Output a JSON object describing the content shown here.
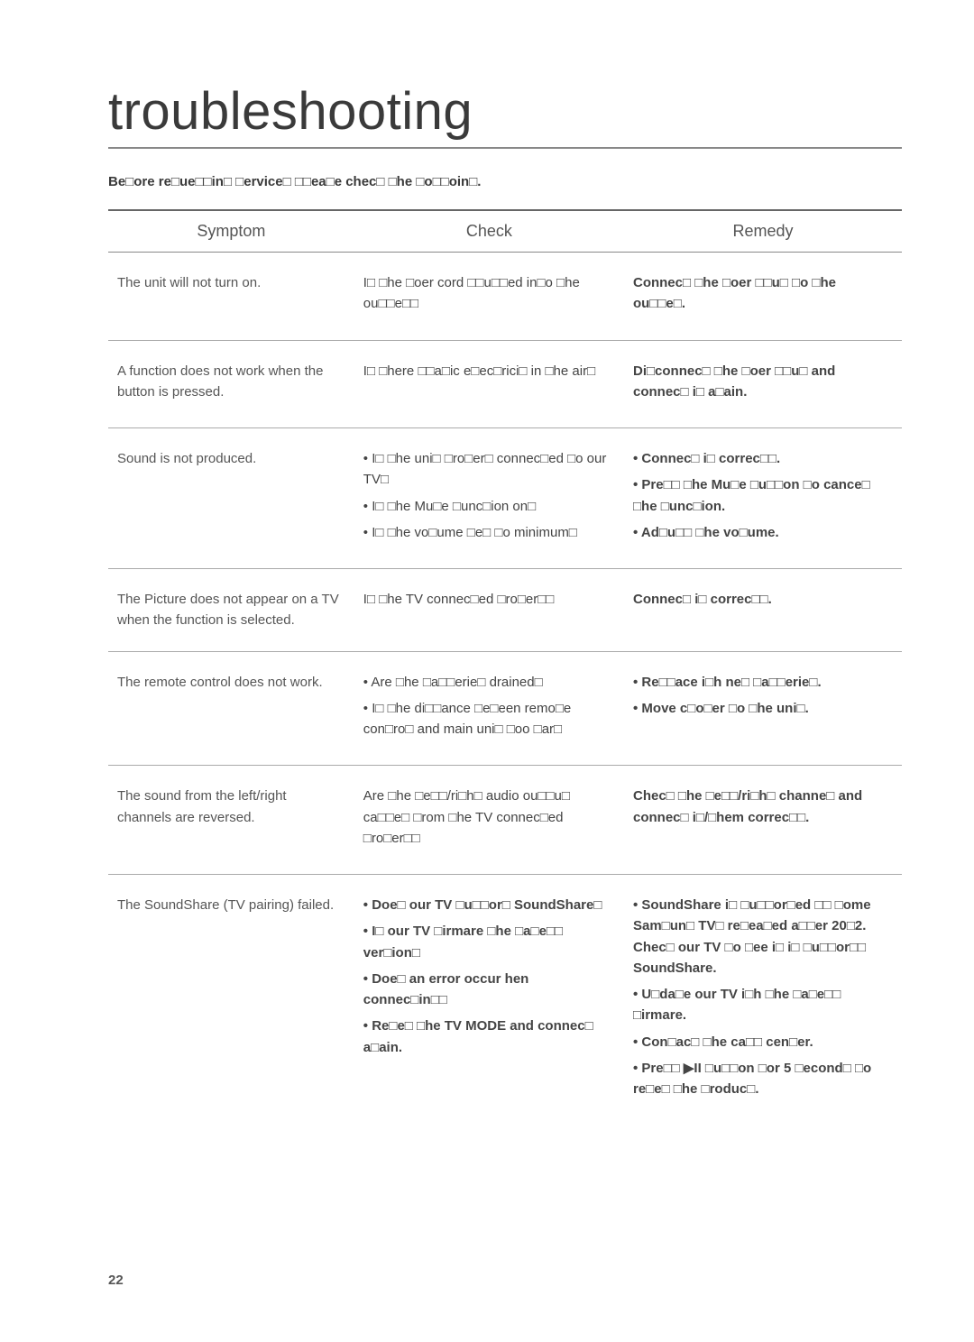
{
  "title": "troubleshooting",
  "intro": "Be□ore re□ue□□in□ □ervice□ □□ea□e chec□ □he □o□□oin□.",
  "headers": {
    "c1": "Symptom",
    "c2": "Check",
    "c3": "Remedy"
  },
  "rows": [
    {
      "symptom": "The unit will not turn on.",
      "checks": [
        "I□ □he □oer cord □□u□□ed in□o □he ou□□e□□"
      ],
      "remedies": [
        "Connec□ □he □oer □□u□ □o □he ou□□e□."
      ]
    },
    {
      "symptom": "A function does not work when the button is pressed.",
      "checks": [
        "I□ □here □□a□ic e□ec□rici□ in □he air□"
      ],
      "remedies": [
        "Di□connec□ □he □oer □□u□ and connec□ i□ a□ain."
      ]
    },
    {
      "symptom": "Sound is not produced.",
      "checks": [
        "I□ □he uni□ □ro□er□ connec□ed □o our TV□",
        "I□ □he Mu□e □unc□ion on□",
        "I□ □he vo□ume □e□ □o minimum□"
      ],
      "remedies": [
        "Connec□ i□ correc□□.",
        "Pre□□ □he Mu□e □u□□on □o cance□ □he □unc□ion.",
        "Ad□u□□ □he vo□ume."
      ]
    },
    {
      "symptom": "The Picture does not appear on a TV when the function is selected.",
      "checks": [
        "I□ □he TV connec□ed □ro□er□□"
      ],
      "remedies": [
        "Connec□ i□ correc□□."
      ]
    },
    {
      "symptom": "The remote control does not work.",
      "checks": [
        "Are □he □a□□erie□ drained□",
        "I□ □he di□□ance □e□een remo□e con□ro□ and main uni□ □oo □ar□"
      ],
      "remedies": [
        "Re□□ace i□h ne□ □a□□erie□.",
        "Move c□o□er □o □he uni□."
      ]
    },
    {
      "symptom": "The sound from the left/right channels are reversed.",
      "checks": [
        "Are □he □e□□/ri□h□ audio ou□□u□ ca□□e□ □rom □he TV connec□ed □ro□er□□"
      ],
      "remedies": [
        "Chec□ □he □e□□/ri□h□ channe□ and connec□ i□/□hem correc□□."
      ]
    },
    {
      "symptom": "The SoundShare (TV pairing) failed.",
      "checks": [
        "Doe□ our TV □u□□or□ SoundShare□",
        "I□ our TV □irmare □he □a□e□□ ver□ion□",
        "Doe□ an error occur hen connec□in□□",
        "Re□e□ □he TV MODE and connec□ a□ain."
      ],
      "remedies": [
        "SoundShare i□ □u□□or□ed □□ □ome Sam□un□ TV□ re□ea□ed a□□er 20□2. Chec□ our TV □o □ee i□ i□ □u□□or□□ SoundShare.",
        "U□da□e our TV i□h □he □a□e□□ □irmare.",
        "Con□ac□ □he ca□□ cen□er.",
        "Pre□□ ▶II □u□□on □or 5 □econd□ □o re□e□ □he □roduc□."
      ]
    }
  ],
  "pageNumber": "22"
}
